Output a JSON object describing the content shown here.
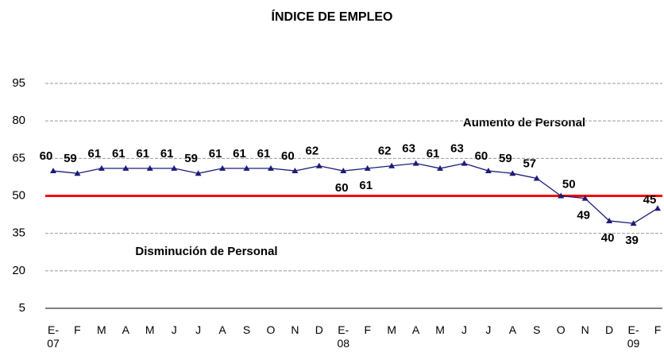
{
  "chart_data": {
    "type": "line",
    "title": "ÍNDICE DE EMPLEO",
    "categories": [
      "E-\n07",
      "F",
      "M",
      "A",
      "M",
      "J",
      "J",
      "A",
      "S",
      "O",
      "N",
      "D",
      "E-\n08",
      "F",
      "M",
      "A",
      "M",
      "J",
      "J",
      "A",
      "S",
      "O",
      "N",
      "D",
      "E-\n09",
      "F"
    ],
    "series": [
      {
        "name": "Índice de empleo",
        "color": "#1c1c78",
        "values": [
          60,
          59,
          61,
          61,
          61,
          61,
          59,
          61,
          61,
          61,
          60,
          62,
          60,
          61,
          62,
          63,
          61,
          63,
          60,
          59,
          57,
          50,
          49,
          40,
          39,
          45
        ]
      }
    ],
    "ylim": [
      5,
      95
    ],
    "yticks": [
      5,
      20,
      35,
      50,
      65,
      80,
      95
    ],
    "grid": true,
    "reference_line": {
      "value": 50,
      "color": "#ff0000"
    },
    "annotations": [
      "Aumento de Personal",
      "Disminución de Personal"
    ]
  }
}
